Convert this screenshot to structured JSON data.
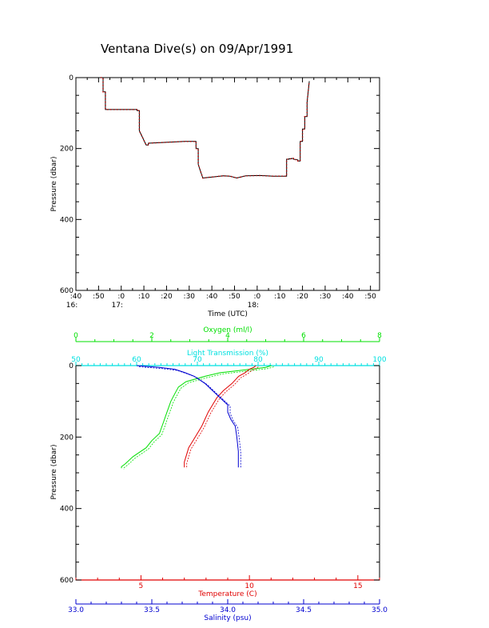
{
  "chart_data": [
    {
      "type": "line",
      "title": "Ventana Dive(s) on 09/Apr/1991",
      "xlabel": "Time (UTC)",
      "ylabel": "Pressure (dbar)",
      "x_tick_labels": [
        ":40",
        ":50",
        ":0",
        ":10",
        ":20",
        ":30",
        ":40",
        ":50",
        ":0",
        ":10",
        ":20",
        ":30",
        ":40",
        ":50"
      ],
      "x_hour_labels": [
        "16:",
        "17:",
        "18:"
      ],
      "y_tick_labels": [
        "0",
        "200",
        "400",
        "600"
      ],
      "xlim_minutes_after_1640": [
        0,
        134
      ],
      "ylim": [
        600,
        0
      ],
      "series": [
        {
          "x_minutes_after_1640": [
            11,
            12,
            12,
            13,
            13,
            27,
            27,
            28,
            28,
            31,
            32,
            32,
            48,
            49,
            50,
            53,
            53,
            54,
            54,
            56,
            59,
            62,
            65,
            68,
            71,
            75,
            81,
            84,
            87,
            90,
            93,
            93,
            94,
            94,
            95,
            95,
            96,
            96,
            98,
            98,
            99,
            99,
            100,
            100,
            101,
            101,
            102,
            102,
            103
          ],
          "pressure_dbar": [
            0,
            0,
            40,
            40,
            90,
            90,
            93,
            93,
            150,
            190,
            190,
            185,
            180,
            180,
            180,
            180,
            200,
            200,
            245,
            283,
            281,
            279,
            277,
            278,
            283,
            277,
            276,
            277,
            278,
            278,
            278,
            230,
            230,
            229,
            229,
            228,
            228,
            230,
            232,
            235,
            235,
            180,
            180,
            145,
            145,
            110,
            110,
            70,
            10
          ]
        }
      ]
    },
    {
      "type": "line",
      "xlabel_top_outer": "Oxygen (ml/l)",
      "xlabel_top_inner": "Light Transmission (%)",
      "xlabel_bottom_inner": "Temperature (C)",
      "xlabel_bottom_outer": "Salinity (psu)",
      "ylabel": "Pressure (dbar)",
      "ylim": [
        600,
        0
      ],
      "y_tick_labels": [
        "0",
        "200",
        "400",
        "600"
      ],
      "axes": {
        "oxygen": {
          "range": [
            0,
            8
          ],
          "tick_labels": [
            "0",
            "2",
            "4",
            "6",
            "8"
          ],
          "color": "#00e000"
        },
        "light_transmission": {
          "range": [
            50,
            100
          ],
          "tick_labels": [
            "50",
            "60",
            "70",
            "80",
            "90",
            "100"
          ],
          "color": "#00e0e0"
        },
        "temperature": {
          "range": [
            2,
            16
          ],
          "tick_labels": [
            "5",
            "10",
            "15"
          ],
          "color": "#e00000"
        },
        "salinity": {
          "range": [
            33.0,
            35.0
          ],
          "tick_labels": [
            "33.0",
            "33.5",
            "34.0",
            "34.5",
            "35.0"
          ],
          "color": "#0000d0"
        }
      },
      "series": [
        {
          "name": "Oxygen",
          "axis": "oxygen",
          "color": "#00e000",
          "value": [
            5.15,
            5.0,
            4.6,
            4.2,
            3.8,
            3.4,
            2.9,
            2.7,
            2.6,
            2.5,
            2.4,
            2.3,
            2.2,
            2.0,
            1.85,
            1.5,
            1.3,
            1.2,
            1.2
          ],
          "pressure_dbar": [
            0,
            5,
            10,
            15,
            20,
            30,
            45,
            60,
            80,
            100,
            130,
            160,
            190,
            210,
            230,
            255,
            275,
            283,
            287
          ]
        },
        {
          "name": "Temperature",
          "axis": "temperature",
          "color": "#e00000",
          "value": [
            10.3,
            10.2,
            10.0,
            9.8,
            9.5,
            9.2,
            8.8,
            8.5,
            8.3,
            8.1,
            7.95,
            7.8,
            7.6,
            7.4,
            7.2,
            7.1,
            7.0,
            7.0
          ],
          "pressure_dbar": [
            0,
            5,
            10,
            20,
            30,
            50,
            70,
            90,
            110,
            130,
            150,
            170,
            190,
            210,
            230,
            250,
            270,
            285
          ]
        },
        {
          "name": "Salinity",
          "axis": "salinity",
          "color": "#0000d0",
          "value": [
            33.4,
            33.55,
            33.65,
            33.72,
            33.78,
            33.85,
            33.9,
            33.95,
            34.0,
            34.0,
            34.02,
            34.05,
            34.06,
            34.07,
            34.07
          ],
          "pressure_dbar": [
            0,
            5,
            10,
            20,
            30,
            50,
            70,
            90,
            110,
            130,
            150,
            170,
            200,
            240,
            285
          ]
        }
      ]
    }
  ]
}
